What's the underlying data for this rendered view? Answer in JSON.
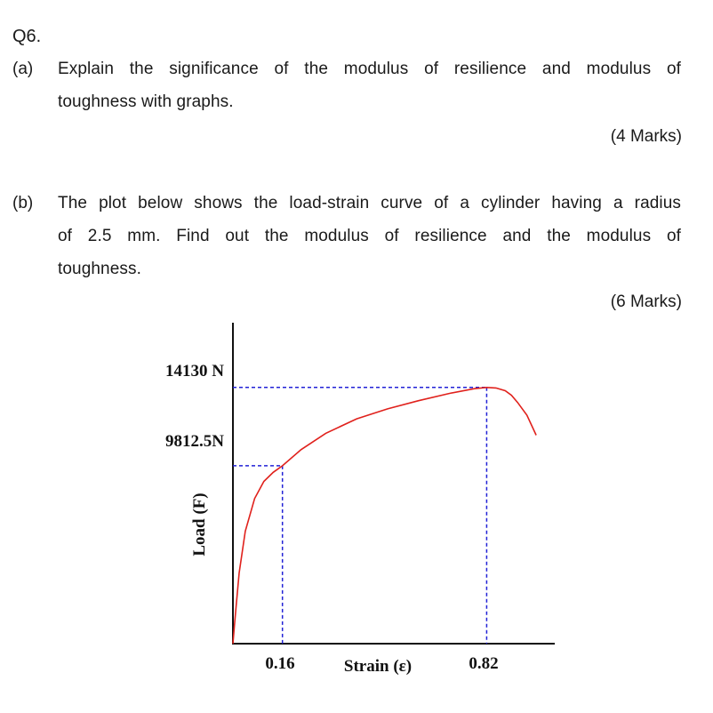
{
  "question": {
    "number": "Q6.",
    "part_a": {
      "label": "(a)",
      "lines": [
        "Explain the significance of the modulus of resilience and modulus of",
        "toughness with graphs."
      ],
      "marks": "(4 Marks)"
    },
    "part_b": {
      "label": "(b)",
      "lines": [
        "The plot below shows the load-strain curve of a cylinder having a radius",
        "of 2.5 mm. Find out the modulus of resilience and the modulus of",
        "toughness."
      ],
      "marks": "(6 Marks)"
    }
  },
  "chart_data": {
    "type": "line",
    "xlabel": "Strain (ε)",
    "ylabel": "Load (F)",
    "x_ticks": [
      "0.16",
      "0.82"
    ],
    "y_ticks": [
      "14130 N",
      "9812.5N"
    ],
    "yield_point": {
      "x": 0.16,
      "y": 9812.5
    },
    "ultimate_point": {
      "x": 0.82,
      "y": 14130
    },
    "series": [
      {
        "x": [
          0,
          0.005,
          0.01,
          0.02,
          0.04,
          0.07,
          0.1,
          0.13,
          0.16,
          0.22,
          0.3,
          0.4,
          0.5,
          0.6,
          0.7,
          0.78,
          0.82,
          0.85,
          0.88,
          0.9,
          0.92,
          0.95,
          0.98
        ],
        "y": [
          0,
          1000,
          2000,
          3900,
          6200,
          8000,
          8950,
          9450,
          9812.5,
          10700,
          11600,
          12400,
          12950,
          13400,
          13800,
          14060,
          14130,
          14100,
          13950,
          13700,
          13300,
          12600,
          11500
        ]
      }
    ],
    "xlim": [
      0,
      1.04
    ],
    "ylim": [
      0,
      17700
    ],
    "colors": {
      "curve": "#e0211c",
      "guide": "#2121d6",
      "axis": "#111111"
    },
    "grid": false
  }
}
